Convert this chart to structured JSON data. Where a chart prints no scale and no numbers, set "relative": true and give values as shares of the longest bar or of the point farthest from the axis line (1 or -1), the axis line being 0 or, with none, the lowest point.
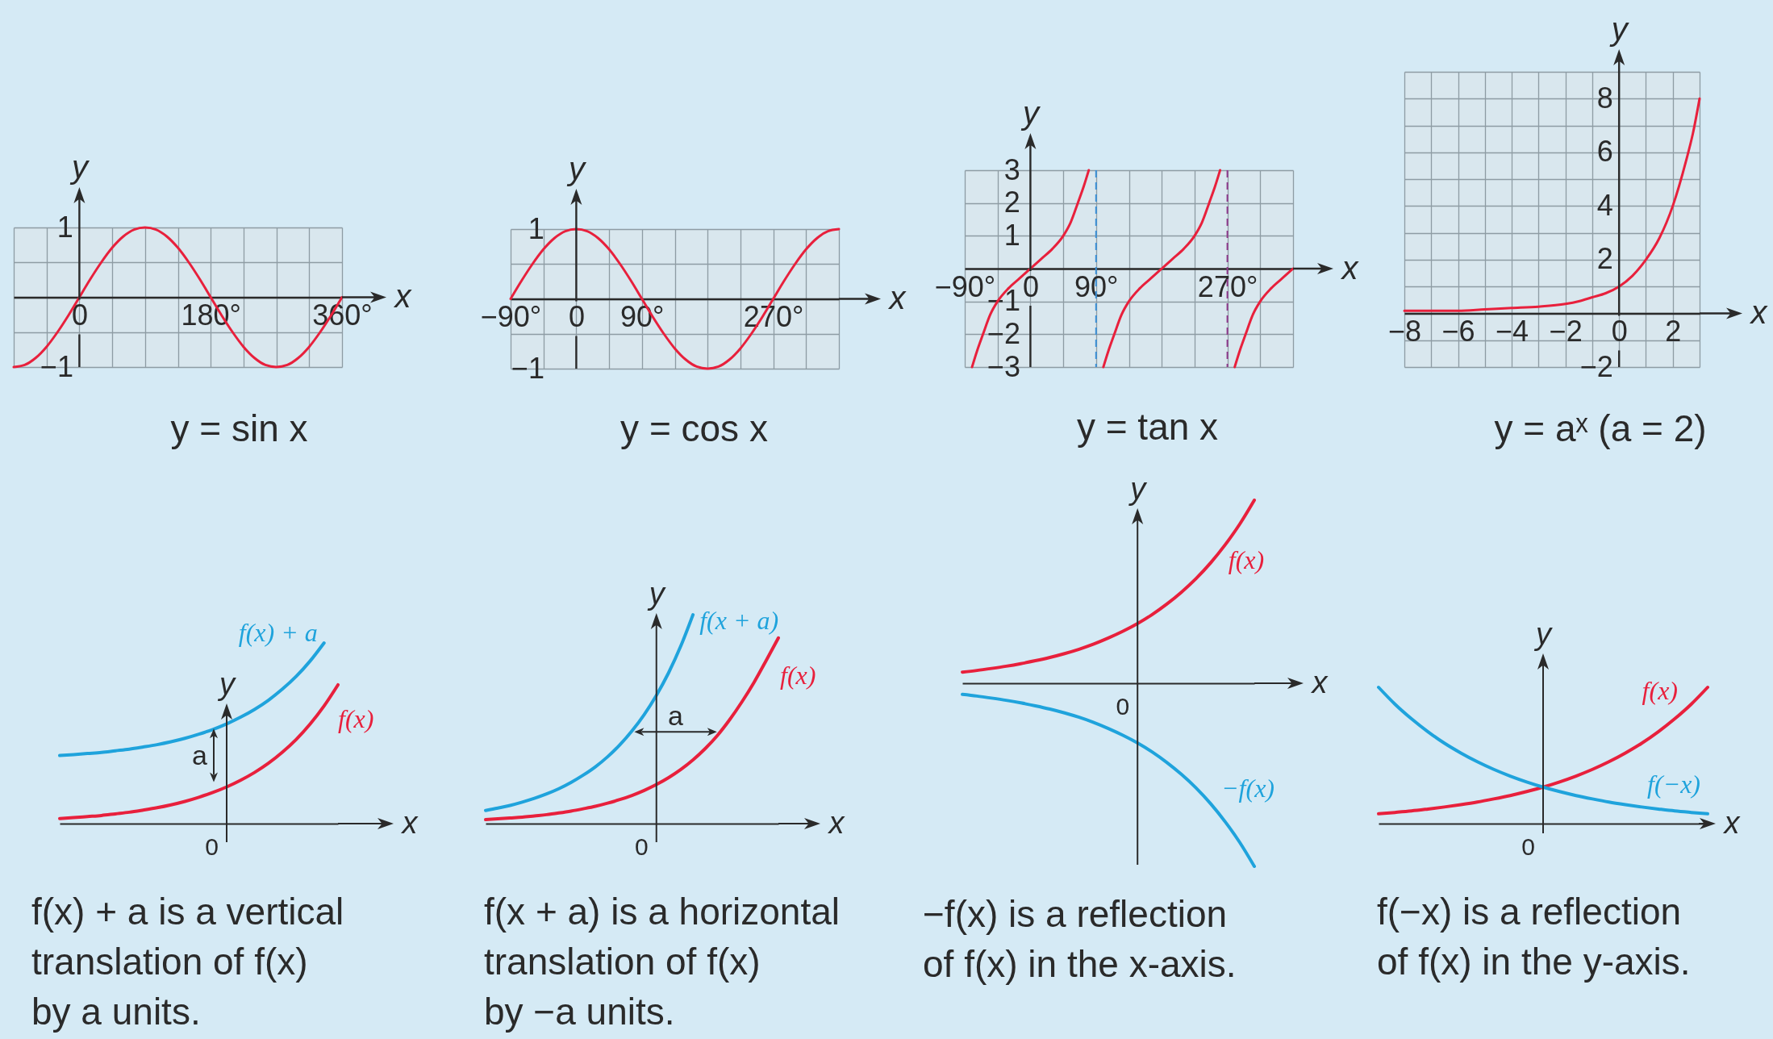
{
  "chart_data": [
    {
      "type": "line",
      "title": "y = sin x",
      "xlabel": "x",
      "ylabel": "y",
      "x": [
        -90,
        -75,
        -60,
        -45,
        -30,
        -15,
        0,
        15,
        30,
        45,
        60,
        75,
        90,
        105,
        120,
        135,
        150,
        165,
        180,
        195,
        210,
        225,
        240,
        255,
        270,
        285,
        300,
        315,
        330,
        345,
        360
      ],
      "series": [
        {
          "color": "#e8203c",
          "values": [
            -1,
            -0.97,
            -0.87,
            -0.71,
            -0.5,
            -0.26,
            0,
            0.26,
            0.5,
            0.71,
            0.87,
            0.97,
            1,
            0.97,
            0.87,
            0.71,
            0.5,
            0.26,
            0,
            -0.26,
            -0.5,
            -0.71,
            -0.87,
            -0.97,
            -1,
            -0.97,
            -0.87,
            -0.71,
            -0.5,
            -0.26,
            0
          ]
        }
      ],
      "xlim": [
        -90,
        360
      ],
      "ylim": [
        -1,
        1
      ],
      "xticks": [
        {
          "value": -90,
          "label": null
        },
        {
          "value": -45,
          "label": null
        },
        {
          "value": 0,
          "label": "0"
        },
        {
          "value": 45,
          "label": null
        },
        {
          "value": 90,
          "label": null
        },
        {
          "value": 135,
          "label": null
        },
        {
          "value": 180,
          "label": "180°"
        },
        {
          "value": 225,
          "label": null
        },
        {
          "value": 270,
          "label": null
        },
        {
          "value": 315,
          "label": null
        },
        {
          "value": 360,
          "label": "360°"
        }
      ],
      "yticks": [
        {
          "value": -1,
          "label": "−1"
        },
        {
          "value": -0.5,
          "label": null
        },
        {
          "value": 0,
          "label": null
        },
        {
          "value": 0.5,
          "label": null
        },
        1
      ],
      "grid": true
    },
    {
      "type": "line",
      "title": "y = cos x",
      "xlabel": "x",
      "ylabel": "y",
      "x": [
        -90,
        -75,
        -60,
        -45,
        -30,
        -15,
        0,
        15,
        30,
        45,
        60,
        75,
        90,
        105,
        120,
        135,
        150,
        165,
        180,
        195,
        210,
        225,
        240,
        255,
        270,
        285,
        300,
        315,
        330,
        345,
        360
      ],
      "series": [
        {
          "color": "#e8203c",
          "values": [
            0,
            0.26,
            0.5,
            0.71,
            0.87,
            0.97,
            1,
            0.97,
            0.87,
            0.71,
            0.5,
            0.26,
            0,
            -0.26,
            -0.5,
            -0.71,
            -0.87,
            -0.97,
            -1,
            -0.97,
            -0.87,
            -0.71,
            -0.5,
            -0.26,
            0,
            0.26,
            0.5,
            0.71,
            0.87,
            0.97,
            1
          ]
        }
      ],
      "xlim": [
        -90,
        360
      ],
      "ylim": [
        -1,
        1
      ],
      "xticks": [
        {
          "value": -90,
          "label": "−90°"
        },
        {
          "value": -45,
          "label": null
        },
        {
          "value": 0,
          "label": "0"
        },
        {
          "value": 45,
          "label": null
        },
        {
          "value": 90,
          "label": "90°"
        },
        {
          "value": 135,
          "label": null
        },
        {
          "value": 180,
          "label": null
        },
        {
          "value": 225,
          "label": null
        },
        {
          "value": 270,
          "label": "270°"
        },
        {
          "value": 315,
          "label": null
        },
        {
          "value": 360,
          "label": null
        }
      ],
      "yticks": [
        {
          "value": -1,
          "label": "−1"
        },
        {
          "value": -0.5,
          "label": null
        },
        {
          "value": 0,
          "label": null
        },
        {
          "value": 0.5,
          "label": null
        },
        1
      ],
      "grid": true
    },
    {
      "type": "line",
      "title": "y = tan x",
      "xlabel": "x",
      "ylabel": "y",
      "series": [
        {
          "color": "#e8203c",
          "x": [
            -80,
            -73,
            -65,
            -55,
            -45,
            -30,
            -15,
            0,
            15,
            30,
            45,
            55,
            65,
            73,
            80
          ],
          "values": [
            -3,
            -2.5,
            -2,
            -1.4,
            -1,
            -0.6,
            -0.3,
            0,
            0.3,
            0.6,
            1,
            1.4,
            2,
            2.5,
            3
          ]
        },
        {
          "color": "#e8203c",
          "x": [
            100,
            107,
            115,
            125,
            135,
            150,
            165,
            180,
            195,
            210,
            225,
            235,
            245,
            253,
            260
          ],
          "values": [
            -3,
            -2.5,
            -2,
            -1.4,
            -1,
            -0.6,
            -0.3,
            0,
            0.3,
            0.6,
            1,
            1.4,
            2,
            2.5,
            3
          ]
        },
        {
          "color": "#e8203c",
          "x": [
            280,
            287,
            295,
            305,
            315,
            330,
            345,
            360
          ],
          "values": [
            -3,
            -2.5,
            -2,
            -1.4,
            -1,
            -0.6,
            -0.3,
            0
          ]
        }
      ],
      "xlim": [
        -90,
        360
      ],
      "ylim": [
        -3,
        3
      ],
      "xticks": [
        {
          "value": -90,
          "label": "−90°"
        },
        {
          "value": -45,
          "label": null
        },
        {
          "value": 0,
          "label": "0"
        },
        {
          "value": 45,
          "label": null
        },
        {
          "value": 90,
          "label": "90°"
        },
        {
          "value": 135,
          "label": null
        },
        {
          "value": 180,
          "label": null
        },
        {
          "value": 225,
          "label": null
        },
        {
          "value": 270,
          "label": "270°"
        },
        {
          "value": 315,
          "label": null
        },
        {
          "value": 360,
          "label": null
        }
      ],
      "yticks": [
        {
          "value": -3,
          "label": "−3"
        },
        {
          "value": -2,
          "label": "−2"
        },
        {
          "value": -1,
          "label": "−1"
        },
        {
          "value": 0,
          "label": null
        },
        1,
        2,
        3
      ],
      "grid": true,
      "ref_lines": [
        {
          "axis": "x",
          "value": 90,
          "color": "#3a8fd6",
          "line_style": "dashed"
        },
        {
          "axis": "x",
          "value": 270,
          "color": "#8e3a8c",
          "line_style": "dashed"
        }
      ]
    },
    {
      "type": "line",
      "title": "y = aˣ (a = 2)",
      "xlabel": "x",
      "ylabel": "y",
      "x": [
        -8,
        -7,
        -6,
        -5,
        -4,
        -3,
        -2,
        -1.5,
        -1,
        -0.5,
        0,
        0.5,
        1,
        1.5,
        2,
        2.5,
        2.75,
        3
      ],
      "series": [
        {
          "color": "#e8203c",
          "values": [
            0.1,
            0.1,
            0.1,
            0.15,
            0.2,
            0.25,
            0.35,
            0.45,
            0.6,
            0.75,
            1,
            1.4,
            2,
            2.8,
            4,
            5.7,
            6.7,
            8
          ]
        }
      ],
      "xlim": [
        -8,
        3
      ],
      "ylim": [
        -2,
        9
      ],
      "xticks": [
        {
          "value": -8,
          "label": "−8"
        },
        {
          "value": -7,
          "label": null
        },
        {
          "value": -6,
          "label": "−6"
        },
        {
          "value": -5,
          "label": null
        },
        {
          "value": -4,
          "label": "−4"
        },
        {
          "value": -3,
          "label": null
        },
        {
          "value": -2,
          "label": "−2"
        },
        {
          "value": -1,
          "label": null
        },
        {
          "value": 0,
          "label": "0"
        },
        {
          "value": 1,
          "label": null
        },
        2,
        {
          "value": 3,
          "label": null
        }
      ],
      "yticks": [
        {
          "value": -2,
          "label": "−2"
        },
        {
          "value": -1,
          "label": null
        },
        {
          "value": 0,
          "label": null
        },
        {
          "value": 1,
          "label": null
        },
        2,
        {
          "value": 3,
          "label": null
        },
        4,
        {
          "value": 5,
          "label": null
        },
        6,
        {
          "value": 7,
          "label": null
        },
        8,
        {
          "value": 9,
          "label": null
        }
      ],
      "grid": true
    },
    {
      "type": "line",
      "title": "f(x) + a is a vertical\ntranslation of f(x)\nby a units.",
      "xlabel": "x",
      "ylabel": "y",
      "categories": [
        null,
        null,
        null,
        null,
        null,
        null,
        null,
        null,
        null,
        null,
        null,
        null,
        null,
        null,
        null,
        null,
        null,
        null,
        null,
        null,
        null
      ],
      "relative": true,
      "series": [
        {
          "name": "f(x)",
          "color": "#e8203c",
          "values": [
            0.028,
            0.033,
            0.039,
            0.045,
            0.054,
            0.063,
            0.075,
            0.088,
            0.104,
            0.123,
            0.146,
            0.172,
            0.203,
            0.24,
            0.283,
            0.334,
            0.395,
            0.466,
            0.551,
            0.651,
            0.768
          ]
        },
        {
          "name": "f(x) + a",
          "color": "#1fa3dc",
          "values": [
            0.377,
            0.382,
            0.388,
            0.394,
            0.403,
            0.412,
            0.424,
            0.437,
            0.453,
            0.472,
            0.495,
            0.521,
            0.552,
            0.589,
            0.632,
            0.683,
            0.744,
            0.815,
            0.9,
            1,
            null
          ]
        }
      ],
      "annotations": [
        "0",
        "a"
      ]
    },
    {
      "type": "line",
      "title": "f(x + a) is a horizontal\ntranslation of f(x)\nby −a units.",
      "xlabel": "x",
      "ylabel": "y",
      "categories": [
        null,
        null,
        null,
        null,
        null,
        null,
        null,
        null,
        null,
        null,
        null,
        null,
        null,
        null,
        null,
        null,
        null,
        null,
        null,
        null,
        null,
        null,
        null,
        null,
        null
      ],
      "relative": true,
      "series": [
        {
          "name": "f(x)",
          "color": "#e8203c",
          "values": [
            0.019,
            0.023,
            0.027,
            0.031,
            0.037,
            0.043,
            0.051,
            0.06,
            0.071,
            0.083,
            0.098,
            0.115,
            0.135,
            0.159,
            0.187,
            0.22,
            0.259,
            0.305,
            0.359,
            0.422,
            0.497,
            0.582,
            0.676,
            0.781,
            0.889
          ]
        },
        {
          "name": "f(x + a)",
          "color": "#1fa3dc",
          "values": [
            0.063,
            0.074,
            0.087,
            0.103,
            0.121,
            0.142,
            0.167,
            0.197,
            0.232,
            0.272,
            0.32,
            0.377,
            0.444,
            0.522,
            0.614,
            0.722,
            0.85,
            1,
            null,
            null,
            null,
            null,
            null,
            null,
            null
          ]
        }
      ],
      "annotations": [
        "0",
        "a"
      ]
    },
    {
      "type": "line",
      "title": "−f(x) is a reflection\nof f(x) in the x-axis.",
      "xlabel": "x",
      "ylabel": "y",
      "categories": [
        null,
        null,
        null,
        null,
        null,
        null,
        null,
        null,
        null,
        null,
        null,
        null,
        null,
        null,
        null,
        null,
        null,
        null,
        null,
        null,
        null
      ],
      "relative": true,
      "series": [
        {
          "name": "f(x)",
          "color": "#e8203c",
          "values": [
            0.061,
            0.07,
            0.081,
            0.093,
            0.107,
            0.123,
            0.141,
            0.162,
            0.186,
            0.214,
            0.247,
            0.284,
            0.326,
            0.375,
            0.432,
            0.497,
            0.571,
            0.657,
            0.756,
            0.869,
            1
          ]
        },
        {
          "name": "−f(x)",
          "color": "#1fa3dc",
          "values": [
            -0.061,
            -0.07,
            -0.081,
            -0.093,
            -0.107,
            -0.123,
            -0.141,
            -0.162,
            -0.186,
            -0.214,
            -0.247,
            -0.284,
            -0.326,
            -0.375,
            -0.432,
            -0.497,
            -0.571,
            -0.657,
            -0.756,
            -0.869,
            -1
          ]
        }
      ],
      "annotations": [
        "0"
      ]
    },
    {
      "type": "line",
      "title": "f(−x) is a reflection\nof f(x) in the y-axis.",
      "xlabel": "x",
      "ylabel": "y",
      "categories": [
        null,
        null,
        null,
        null,
        null,
        null,
        null,
        null,
        null,
        null,
        null,
        null,
        null,
        null,
        null,
        null,
        null,
        null,
        null,
        null,
        null
      ],
      "relative": true,
      "series": [
        {
          "name": "f(x)",
          "color": "#e8203c",
          "values": [
            0.072,
            0.082,
            0.093,
            0.107,
            0.122,
            0.139,
            0.158,
            0.181,
            0.206,
            0.235,
            0.268,
            0.306,
            0.349,
            0.398,
            0.454,
            0.518,
            0.59,
            0.674,
            0.769,
            0.876,
            1
          ]
        },
        {
          "name": "f(−x)",
          "color": "#1fa3dc",
          "values": [
            1,
            0.876,
            0.769,
            0.674,
            0.59,
            0.518,
            0.454,
            0.398,
            0.349,
            0.306,
            0.268,
            0.235,
            0.206,
            0.181,
            0.158,
            0.139,
            0.122,
            0.107,
            0.093,
            0.082,
            0.072
          ]
        }
      ],
      "annotations": [
        "0"
      ]
    }
  ]
}
